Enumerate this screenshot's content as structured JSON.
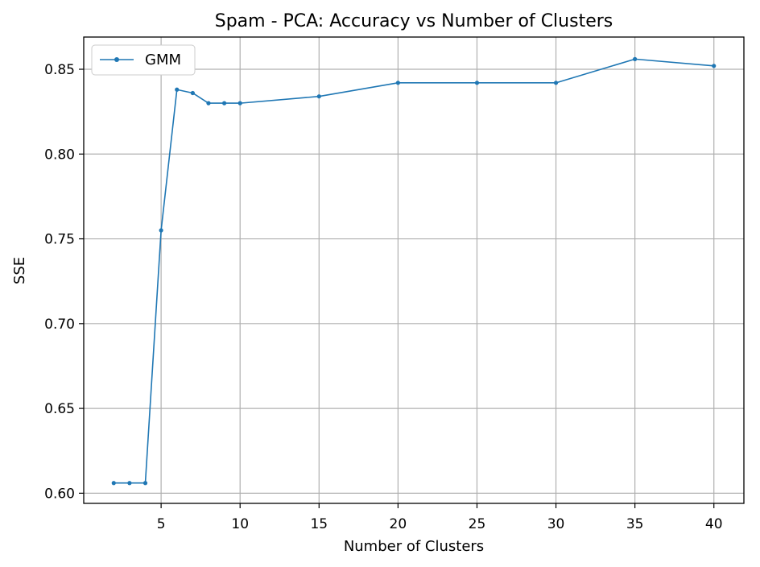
{
  "chart_data": {
    "type": "line",
    "title": "Spam - PCA: Accuracy vs Number of Clusters",
    "xlabel": "Number of Clusters",
    "ylabel": "SSE",
    "xlim": [
      0.1,
      41.9
    ],
    "ylim": [
      0.594,
      0.869
    ],
    "xticks": [
      5,
      10,
      15,
      20,
      25,
      30,
      35,
      40
    ],
    "yticks": [
      0.6,
      0.65,
      0.7,
      0.75,
      0.8,
      0.85
    ],
    "ytick_format": 2,
    "grid": true,
    "legend_position": "top-left",
    "color": "#1f77b4",
    "series": [
      {
        "name": "GMM",
        "x": [
          2,
          3,
          4,
          5,
          6,
          7,
          8,
          9,
          10,
          15,
          20,
          25,
          30,
          35,
          40
        ],
        "y": [
          0.606,
          0.606,
          0.606,
          0.755,
          0.838,
          0.836,
          0.83,
          0.83,
          0.83,
          0.834,
          0.842,
          0.842,
          0.842,
          0.856,
          0.852
        ]
      }
    ]
  }
}
